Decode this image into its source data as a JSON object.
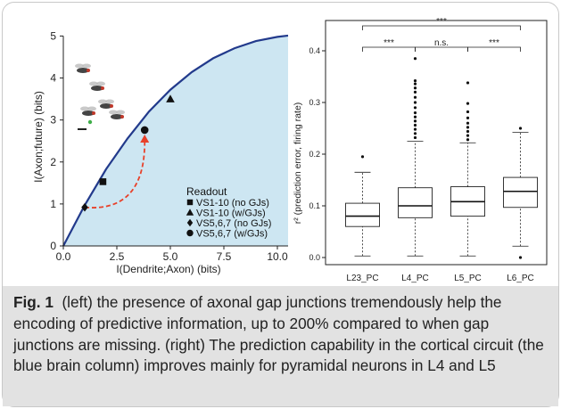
{
  "caption": {
    "label": "Fig. 1",
    "text": "(left) the presence of axonal gap junctions tremendously help the encoding of predictive information, up to 200% compared to when gap junctions are missing. (right) The prediction capability in the cortical circuit (the blue brain column) improves mainly for pyramidal neurons in L4 and L5"
  },
  "chart_data": [
    {
      "type": "line",
      "xlabel": "I(Dendrite;Axon) (bits)",
      "ylabel": "I(Axon;future) (bits)",
      "xlim": [
        0,
        10.5
      ],
      "ylim": [
        0,
        5.2
      ],
      "xticks": [
        "0.0",
        "2.5",
        "5.0",
        "7.5",
        "10.0"
      ],
      "yticks": [
        "0",
        "1",
        "2",
        "3",
        "4",
        "5"
      ],
      "grid": false,
      "curve": {
        "x": [
          0,
          1,
          2,
          3,
          4,
          5,
          6,
          7,
          8,
          9,
          10,
          10.5
        ],
        "y": [
          0,
          0.97,
          1.83,
          2.56,
          3.2,
          3.72,
          4.14,
          4.47,
          4.71,
          4.88,
          4.98,
          5.01
        ],
        "fill_color": "#cde6f2",
        "line_color": "#223a8c"
      },
      "legend": {
        "title": "Readout",
        "position": "bottom-right",
        "entries": [
          "VS1-10 (no GJs)",
          "VS1-10 (w/GJs)",
          "VS5,6,7 (no GJs)",
          "VS5,6,7 (w/GJs)"
        ]
      },
      "points": [
        {
          "x": 1.85,
          "y": 1.53,
          "marker": "square"
        },
        {
          "x": 5.0,
          "y": 3.5,
          "marker": "triangle"
        },
        {
          "x": 1.0,
          "y": 0.92,
          "marker": "diamond"
        },
        {
          "x": 3.8,
          "y": 2.76,
          "marker": "circle"
        }
      ],
      "arrow": {
        "from": [
          1.0,
          0.92
        ],
        "to": [
          3.8,
          2.76
        ],
        "color": "#e8412a",
        "style": "dashed"
      }
    },
    {
      "type": "box",
      "categories": [
        "L23_PC",
        "L4_PC",
        "L5_PC",
        "L6_PC"
      ],
      "ylabel": "r² (prediction error, firing rate)",
      "ylim": [
        0,
        0.4
      ],
      "yticks": [
        "0.0",
        "0.1",
        "0.2",
        "0.3",
        "0.4"
      ],
      "boxes": [
        {
          "q1": 0.06,
          "median": 0.08,
          "q3": 0.105,
          "whisker_low": 0.003,
          "whisker_high": 0.165,
          "outliers": [
            0.195
          ]
        },
        {
          "q1": 0.077,
          "median": 0.1,
          "q3": 0.135,
          "whisker_low": 0.003,
          "whisker_high": 0.225,
          "outliers": [
            0.232,
            0.24,
            0.248,
            0.256,
            0.264,
            0.272,
            0.28,
            0.29,
            0.3,
            0.31,
            0.32,
            0.328,
            0.336,
            0.342,
            0.385
          ]
        },
        {
          "q1": 0.08,
          "median": 0.108,
          "q3": 0.137,
          "whisker_low": 0.003,
          "whisker_high": 0.222,
          "outliers": [
            0.228,
            0.236,
            0.244,
            0.252,
            0.26,
            0.27,
            0.282,
            0.298,
            0.338
          ]
        },
        {
          "q1": 0.097,
          "median": 0.128,
          "q3": 0.155,
          "whisker_low": 0.022,
          "whisker_high": 0.242,
          "outliers": [
            0.0,
            0.25
          ]
        }
      ],
      "significance": [
        {
          "from": 0,
          "to": 3,
          "label": "***"
        },
        {
          "from": 0,
          "to": 1,
          "label": "***"
        },
        {
          "from": 1,
          "to": 2,
          "label": "n.s."
        },
        {
          "from": 2,
          "to": 3,
          "label": "***"
        }
      ]
    }
  ]
}
